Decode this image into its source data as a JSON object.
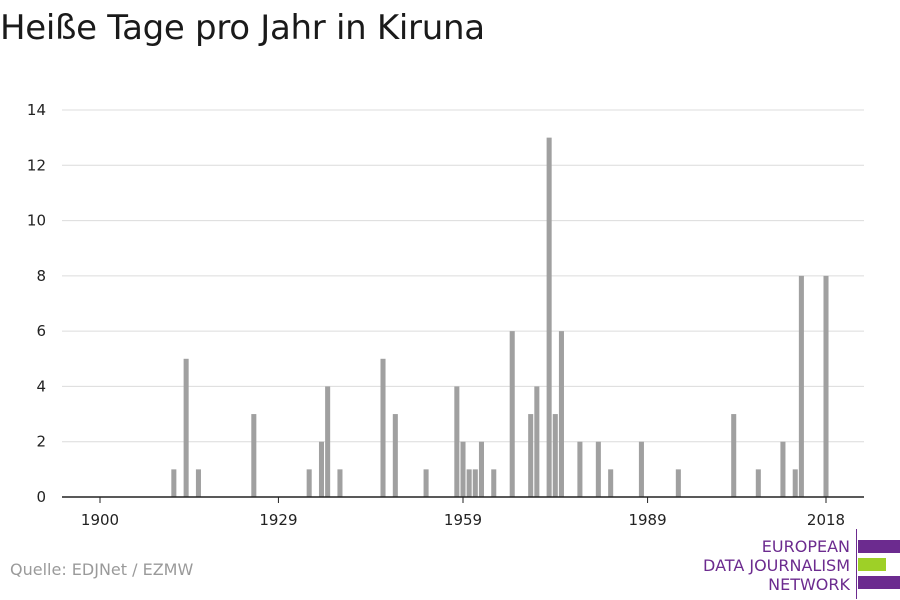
{
  "title": "Heiße Tage pro Jahr in Kiruna",
  "source": "Quelle: EDJNet / EZMW",
  "logo": {
    "lines": [
      "EUROPEAN",
      "DATA JOURNALISM",
      "NETWORK"
    ],
    "colors": {
      "purple": "#6c2b8f",
      "green": "#9ed027"
    }
  },
  "chart_data": {
    "type": "bar",
    "xlabel": "",
    "ylabel": "",
    "ylim": [
      0,
      14
    ],
    "xlim": [
      1900,
      2018
    ],
    "x_ticks": [
      1900,
      1929,
      1959,
      1989,
      2018
    ],
    "y_ticks": [
      0,
      2,
      4,
      6,
      8,
      10,
      12,
      14
    ],
    "grid": true,
    "bar_color": "#a0a0a0",
    "x": [
      1912,
      1914,
      1916,
      1925,
      1934,
      1936,
      1937,
      1939,
      1946,
      1948,
      1953,
      1958,
      1959,
      1960,
      1961,
      1962,
      1964,
      1967,
      1970,
      1971,
      1973,
      1974,
      1975,
      1978,
      1981,
      1983,
      1988,
      1994,
      2003,
      2007,
      2011,
      2013,
      2014,
      2018
    ],
    "values": [
      1,
      5,
      1,
      3,
      1,
      2,
      4,
      1,
      5,
      3,
      1,
      4,
      2,
      1,
      1,
      2,
      1,
      6,
      3,
      4,
      13,
      3,
      6,
      2,
      2,
      1,
      2,
      1,
      3,
      1,
      2,
      1,
      8,
      8
    ]
  }
}
